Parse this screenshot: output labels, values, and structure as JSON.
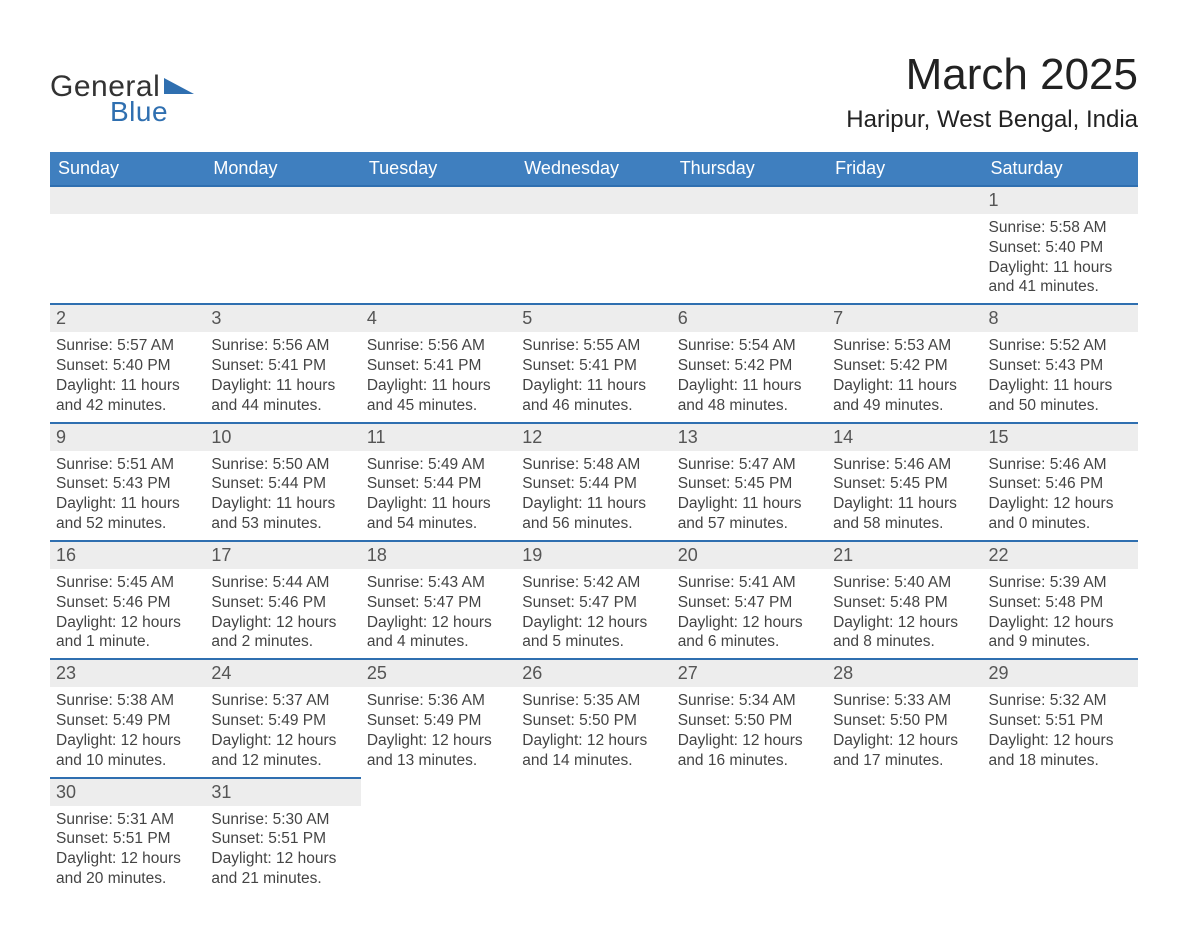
{
  "brand": {
    "word1": "General",
    "word2": "Blue",
    "text_color": "#333333",
    "accent_color": "#2f6fb0"
  },
  "title": {
    "month": "March 2025",
    "location": "Haripur, West Bengal, India",
    "month_fontsize": 44,
    "location_fontsize": 24
  },
  "colors": {
    "header_bg": "#3f7fbf",
    "header_text": "#ffffff",
    "band_bg": "#ededed",
    "band_border": "#2f6fb0",
    "body_text": "#444444",
    "page_bg": "#ffffff"
  },
  "typography": {
    "body_fontsize": 15.5,
    "daynum_fontsize": 18,
    "header_fontsize": 18,
    "font_family": "Arial"
  },
  "calendar": {
    "type": "table",
    "day_headers": [
      "Sunday",
      "Monday",
      "Tuesday",
      "Wednesday",
      "Thursday",
      "Friday",
      "Saturday"
    ],
    "weeks": [
      [
        null,
        null,
        null,
        null,
        null,
        null,
        {
          "n": "1",
          "sunrise": "Sunrise: 5:58 AM",
          "sunset": "Sunset: 5:40 PM",
          "daylight": "Daylight: 11 hours and 41 minutes."
        }
      ],
      [
        {
          "n": "2",
          "sunrise": "Sunrise: 5:57 AM",
          "sunset": "Sunset: 5:40 PM",
          "daylight": "Daylight: 11 hours and 42 minutes."
        },
        {
          "n": "3",
          "sunrise": "Sunrise: 5:56 AM",
          "sunset": "Sunset: 5:41 PM",
          "daylight": "Daylight: 11 hours and 44 minutes."
        },
        {
          "n": "4",
          "sunrise": "Sunrise: 5:56 AM",
          "sunset": "Sunset: 5:41 PM",
          "daylight": "Daylight: 11 hours and 45 minutes."
        },
        {
          "n": "5",
          "sunrise": "Sunrise: 5:55 AM",
          "sunset": "Sunset: 5:41 PM",
          "daylight": "Daylight: 11 hours and 46 minutes."
        },
        {
          "n": "6",
          "sunrise": "Sunrise: 5:54 AM",
          "sunset": "Sunset: 5:42 PM",
          "daylight": "Daylight: 11 hours and 48 minutes."
        },
        {
          "n": "7",
          "sunrise": "Sunrise: 5:53 AM",
          "sunset": "Sunset: 5:42 PM",
          "daylight": "Daylight: 11 hours and 49 minutes."
        },
        {
          "n": "8",
          "sunrise": "Sunrise: 5:52 AM",
          "sunset": "Sunset: 5:43 PM",
          "daylight": "Daylight: 11 hours and 50 minutes."
        }
      ],
      [
        {
          "n": "9",
          "sunrise": "Sunrise: 5:51 AM",
          "sunset": "Sunset: 5:43 PM",
          "daylight": "Daylight: 11 hours and 52 minutes."
        },
        {
          "n": "10",
          "sunrise": "Sunrise: 5:50 AM",
          "sunset": "Sunset: 5:44 PM",
          "daylight": "Daylight: 11 hours and 53 minutes."
        },
        {
          "n": "11",
          "sunrise": "Sunrise: 5:49 AM",
          "sunset": "Sunset: 5:44 PM",
          "daylight": "Daylight: 11 hours and 54 minutes."
        },
        {
          "n": "12",
          "sunrise": "Sunrise: 5:48 AM",
          "sunset": "Sunset: 5:44 PM",
          "daylight": "Daylight: 11 hours and 56 minutes."
        },
        {
          "n": "13",
          "sunrise": "Sunrise: 5:47 AM",
          "sunset": "Sunset: 5:45 PM",
          "daylight": "Daylight: 11 hours and 57 minutes."
        },
        {
          "n": "14",
          "sunrise": "Sunrise: 5:46 AM",
          "sunset": "Sunset: 5:45 PM",
          "daylight": "Daylight: 11 hours and 58 minutes."
        },
        {
          "n": "15",
          "sunrise": "Sunrise: 5:46 AM",
          "sunset": "Sunset: 5:46 PM",
          "daylight": "Daylight: 12 hours and 0 minutes."
        }
      ],
      [
        {
          "n": "16",
          "sunrise": "Sunrise: 5:45 AM",
          "sunset": "Sunset: 5:46 PM",
          "daylight": "Daylight: 12 hours and 1 minute."
        },
        {
          "n": "17",
          "sunrise": "Sunrise: 5:44 AM",
          "sunset": "Sunset: 5:46 PM",
          "daylight": "Daylight: 12 hours and 2 minutes."
        },
        {
          "n": "18",
          "sunrise": "Sunrise: 5:43 AM",
          "sunset": "Sunset: 5:47 PM",
          "daylight": "Daylight: 12 hours and 4 minutes."
        },
        {
          "n": "19",
          "sunrise": "Sunrise: 5:42 AM",
          "sunset": "Sunset: 5:47 PM",
          "daylight": "Daylight: 12 hours and 5 minutes."
        },
        {
          "n": "20",
          "sunrise": "Sunrise: 5:41 AM",
          "sunset": "Sunset: 5:47 PM",
          "daylight": "Daylight: 12 hours and 6 minutes."
        },
        {
          "n": "21",
          "sunrise": "Sunrise: 5:40 AM",
          "sunset": "Sunset: 5:48 PM",
          "daylight": "Daylight: 12 hours and 8 minutes."
        },
        {
          "n": "22",
          "sunrise": "Sunrise: 5:39 AM",
          "sunset": "Sunset: 5:48 PM",
          "daylight": "Daylight: 12 hours and 9 minutes."
        }
      ],
      [
        {
          "n": "23",
          "sunrise": "Sunrise: 5:38 AM",
          "sunset": "Sunset: 5:49 PM",
          "daylight": "Daylight: 12 hours and 10 minutes."
        },
        {
          "n": "24",
          "sunrise": "Sunrise: 5:37 AM",
          "sunset": "Sunset: 5:49 PM",
          "daylight": "Daylight: 12 hours and 12 minutes."
        },
        {
          "n": "25",
          "sunrise": "Sunrise: 5:36 AM",
          "sunset": "Sunset: 5:49 PM",
          "daylight": "Daylight: 12 hours and 13 minutes."
        },
        {
          "n": "26",
          "sunrise": "Sunrise: 5:35 AM",
          "sunset": "Sunset: 5:50 PM",
          "daylight": "Daylight: 12 hours and 14 minutes."
        },
        {
          "n": "27",
          "sunrise": "Sunrise: 5:34 AM",
          "sunset": "Sunset: 5:50 PM",
          "daylight": "Daylight: 12 hours and 16 minutes."
        },
        {
          "n": "28",
          "sunrise": "Sunrise: 5:33 AM",
          "sunset": "Sunset: 5:50 PM",
          "daylight": "Daylight: 12 hours and 17 minutes."
        },
        {
          "n": "29",
          "sunrise": "Sunrise: 5:32 AM",
          "sunset": "Sunset: 5:51 PM",
          "daylight": "Daylight: 12 hours and 18 minutes."
        }
      ],
      [
        {
          "n": "30",
          "sunrise": "Sunrise: 5:31 AM",
          "sunset": "Sunset: 5:51 PM",
          "daylight": "Daylight: 12 hours and 20 minutes."
        },
        {
          "n": "31",
          "sunrise": "Sunrise: 5:30 AM",
          "sunset": "Sunset: 5:51 PM",
          "daylight": "Daylight: 12 hours and 21 minutes."
        },
        null,
        null,
        null,
        null,
        null
      ]
    ]
  }
}
